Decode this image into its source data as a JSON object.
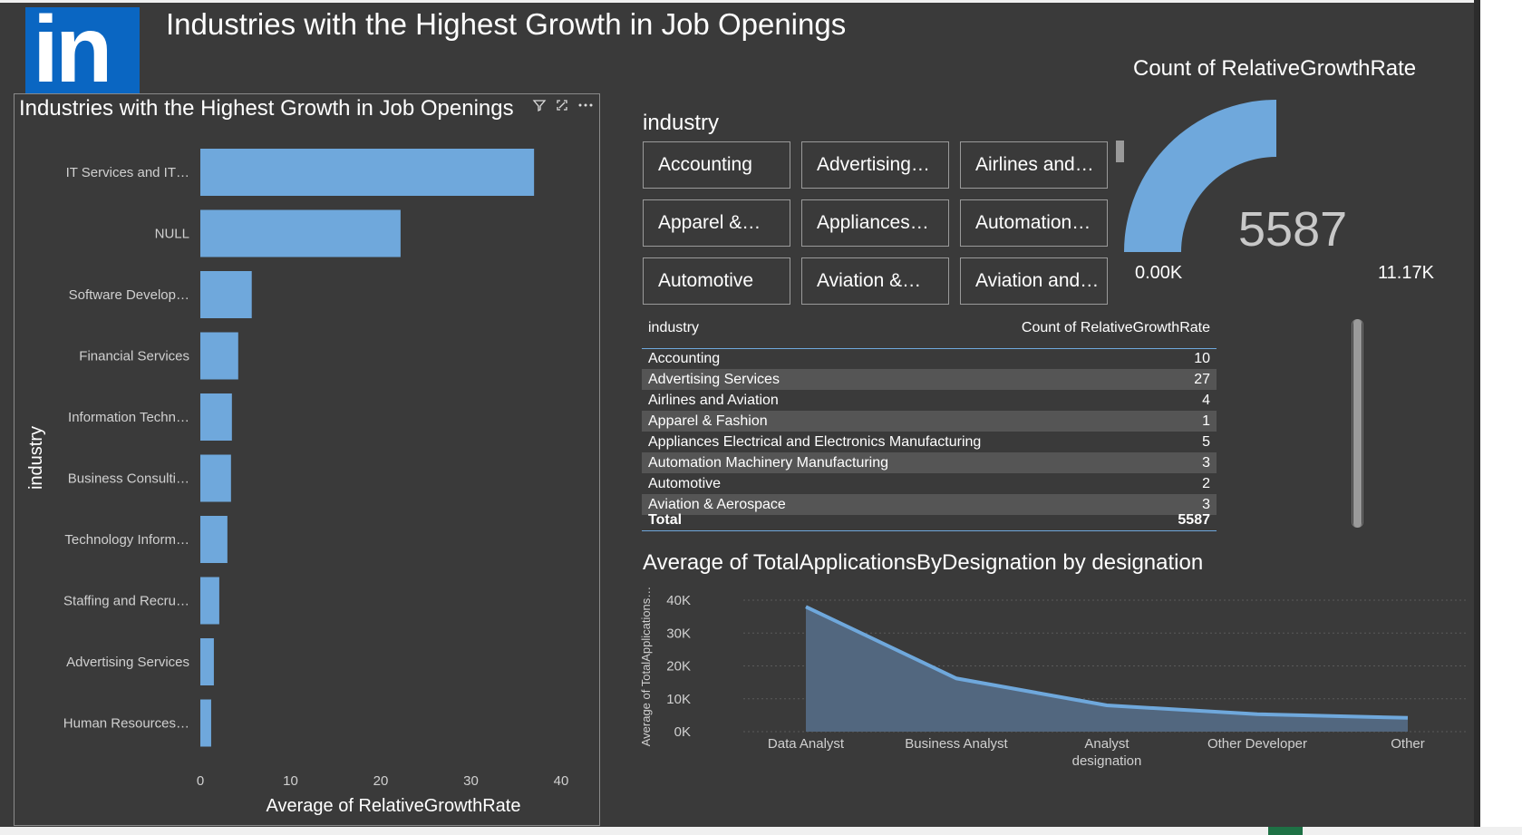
{
  "page": {
    "title": "Industries with the Highest Growth in Job Openings",
    "logo_text": "in",
    "logo_color": "#0a66c2"
  },
  "bar_visual": {
    "title": "Industries with the Highest Growth in Job Openings",
    "icons": [
      "filter-icon",
      "focus-mode-icon",
      "more-options-icon"
    ]
  },
  "slicer": {
    "title": "industry",
    "items": [
      "Accounting",
      "Advertising…",
      "Airlines and…",
      "Apparel &…",
      "Appliances…",
      "Automation…",
      "Automotive",
      "Aviation &…",
      "Aviation and…"
    ]
  },
  "gauge": {
    "title": "Count of RelativeGrowthRate",
    "value": "5587",
    "min_label": "0.00K",
    "max_label": "11.17K",
    "fraction": 0.5,
    "color": "#6fa8dc"
  },
  "table": {
    "headers": [
      "industry",
      "Count of RelativeGrowthRate"
    ],
    "rows": [
      [
        "Accounting",
        "10"
      ],
      [
        "Advertising Services",
        "27"
      ],
      [
        "Airlines and Aviation",
        "4"
      ],
      [
        "Apparel & Fashion",
        "1"
      ],
      [
        "Appliances Electrical and Electronics Manufacturing",
        "5"
      ],
      [
        "Automation Machinery Manufacturing",
        "3"
      ],
      [
        "Automotive",
        "2"
      ],
      [
        "Aviation & Aerospace",
        "3"
      ]
    ],
    "total_label": "Total",
    "total_value": "5587"
  },
  "area_visual": {
    "title": "Average of TotalApplicationsByDesignation by designation"
  },
  "chart_data": [
    {
      "type": "bar",
      "orientation": "horizontal",
      "title": "Industries with the Highest Growth in Job Openings",
      "xlabel": "Average of RelativeGrowthRate",
      "ylabel": "industry",
      "categories": [
        "IT Services and IT…",
        "NULL",
        "Software Develop…",
        "Financial Services",
        "Information Techn…",
        "Business Consulti…",
        "Technology Inform…",
        "Staffing and Recru…",
        "Advertising Services",
        "Human Resources…"
      ],
      "values": [
        37,
        22.2,
        5.7,
        4.2,
        3.5,
        3.4,
        3.0,
        2.1,
        1.5,
        1.2
      ],
      "xlim": [
        0,
        40
      ],
      "xticks": [
        "0",
        "10",
        "20",
        "30",
        "40"
      ],
      "color": "#6fa8dc"
    },
    {
      "type": "area",
      "title": "Average of TotalApplicationsByDesignation by designation",
      "xlabel": "designation",
      "ylabel": "Average of TotalApplications…",
      "categories": [
        "Data Analyst",
        "Business Analyst",
        "Analyst",
        "Other Developer",
        "Other"
      ],
      "values": [
        38000,
        16200,
        8000,
        5300,
        4200
      ],
      "ylim": [
        0,
        40000
      ],
      "yticks": [
        "0K",
        "10K",
        "20K",
        "30K",
        "40K"
      ],
      "color": "#6fa8dc",
      "fill_color": "#52677f"
    }
  ]
}
